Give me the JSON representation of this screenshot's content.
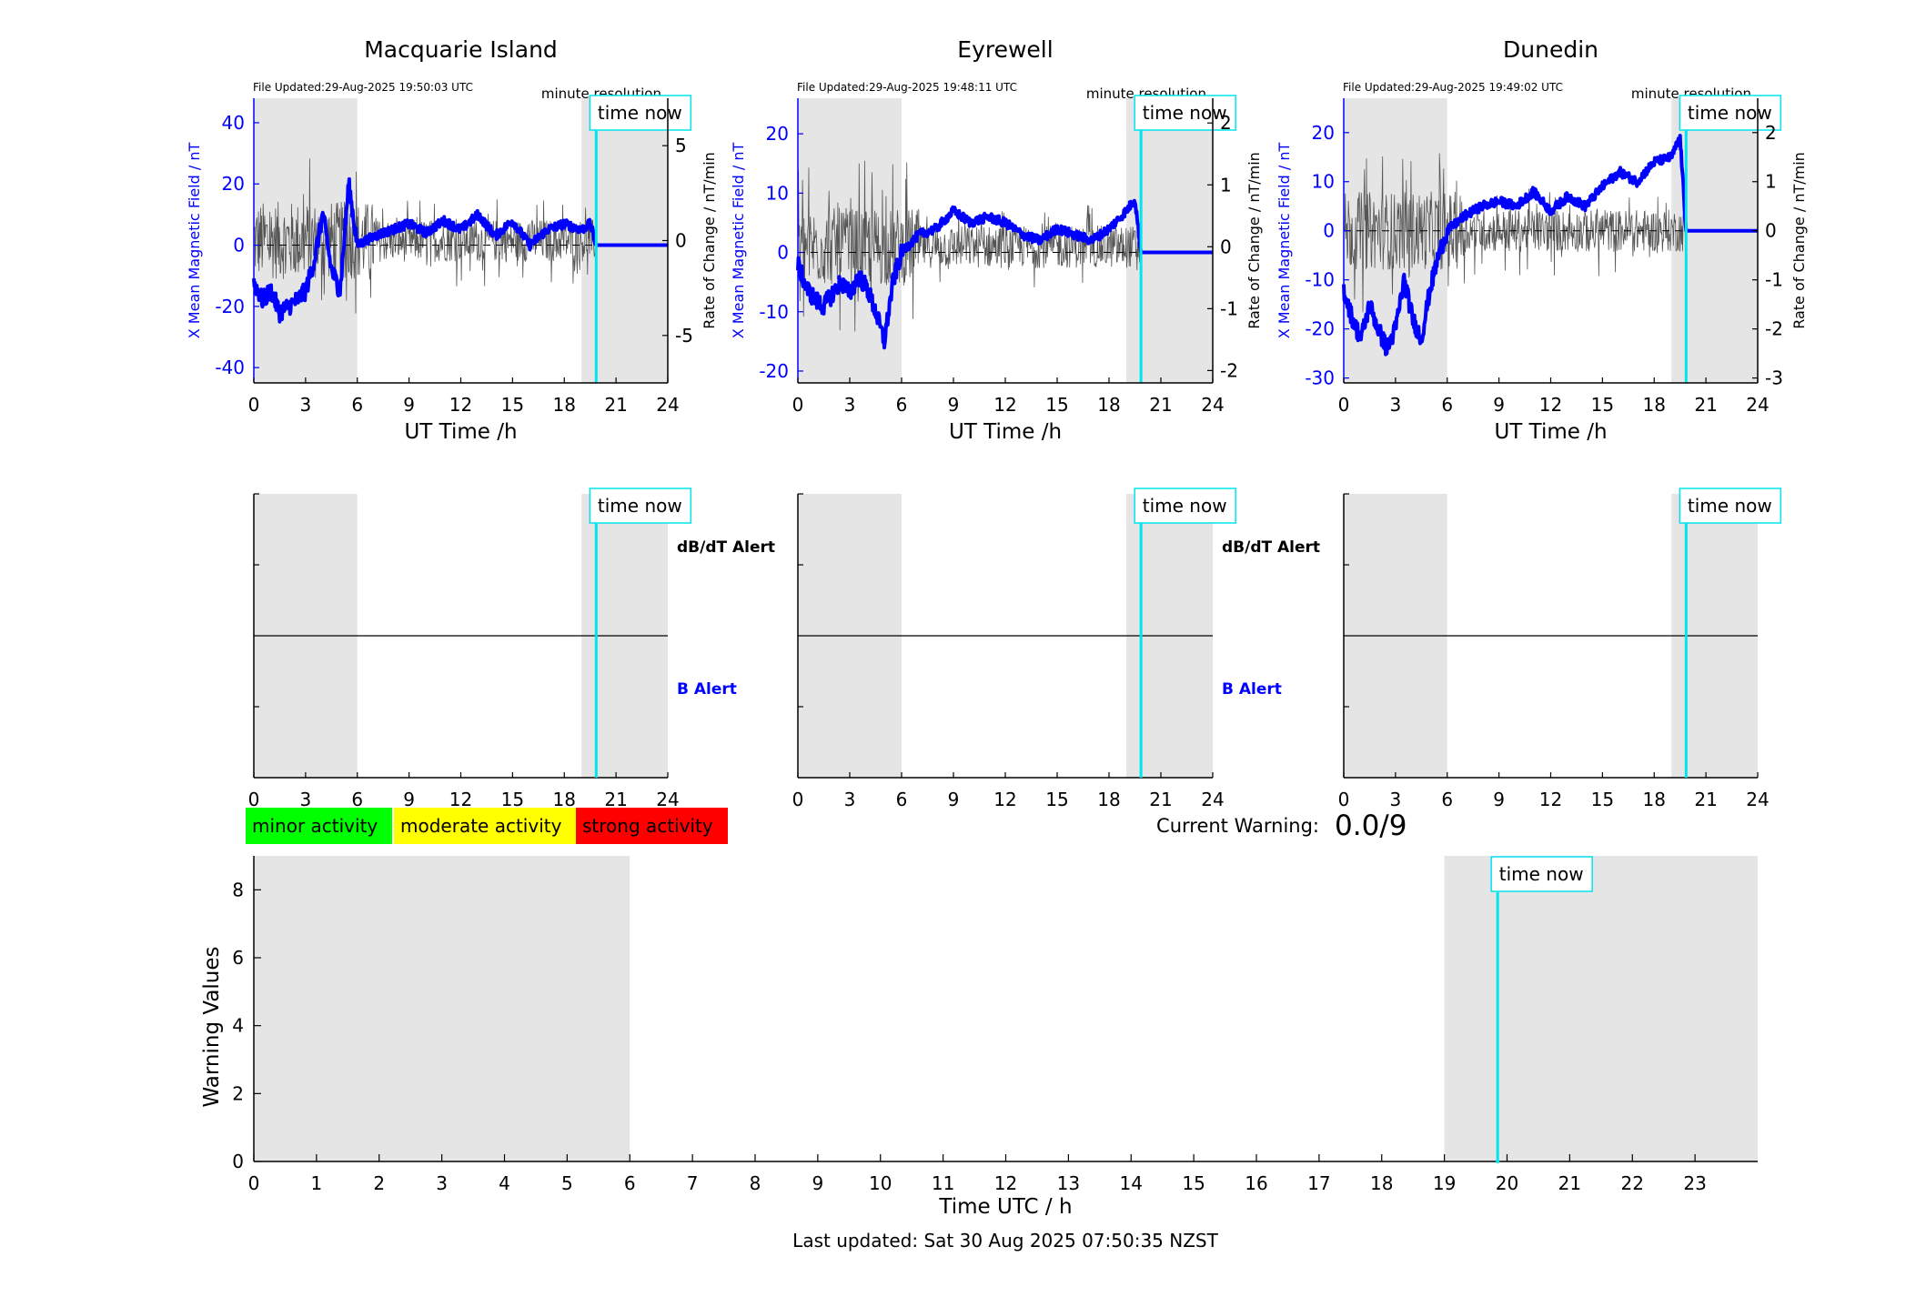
{
  "colors": {
    "field": "#0000ff",
    "rate": "#555555",
    "time_now": "#00e5ee",
    "shade": "#e5e5e5",
    "minor": "#00ff00",
    "moderate": "#ffff00",
    "strong": "#ff0000"
  },
  "stations": [
    {
      "name": "Macquarie Island",
      "file_updated": "File Updated:29-Aug-2025 19:50:03 UTC",
      "resolution": "minute resolution",
      "ylabel_left": "X Mean Magnetic Field / nT",
      "ylabel_right": "Rate of Change / nT/min",
      "left_ticks": [
        -40,
        -20,
        0,
        20,
        40
      ],
      "right_ticks": [
        -5,
        0,
        5
      ],
      "left_ylim": [
        -45,
        48
      ],
      "right_ylim": [
        -7.5,
        7.5
      ],
      "show_alert_labels": true
    },
    {
      "name": "Eyrewell",
      "file_updated": "File Updated:29-Aug-2025 19:48:11 UTC",
      "resolution": "minute resolution",
      "ylabel_left": "X Mean Magnetic Field / nT",
      "ylabel_right": "Rate of Change / nT/min",
      "left_ticks": [
        -20,
        -10,
        0,
        10,
        20
      ],
      "right_ticks": [
        -2,
        -1,
        0,
        1,
        2
      ],
      "left_ylim": [
        -22,
        26
      ],
      "right_ylim": [
        -2.2,
        2.4
      ],
      "show_alert_labels": true
    },
    {
      "name": "Dunedin",
      "file_updated": "File Updated:29-Aug-2025 19:49:02 UTC",
      "resolution": "minute resolution",
      "ylabel_left": "X Mean Magnetic Field / nT",
      "ylabel_right": "Rate of Change / nT/min",
      "left_ticks": [
        -30,
        -20,
        -10,
        0,
        10,
        20
      ],
      "right_ticks": [
        -3,
        -2,
        -1,
        0,
        1,
        2
      ],
      "left_ylim": [
        -31,
        27
      ],
      "right_ylim": [
        -3.1,
        2.7
      ],
      "show_alert_labels": false
    }
  ],
  "top_xlabel": "UT Time /h",
  "x_ticks_3h": [
    0,
    3,
    6,
    9,
    12,
    15,
    18,
    21,
    24
  ],
  "time_now_label": "time now",
  "time_now_hour": 19.85,
  "shaded_hours": [
    [
      0,
      6
    ],
    [
      19,
      24
    ]
  ],
  "alerts": {
    "dbdt": "dB/dT Alert",
    "b": "B Alert"
  },
  "legend": {
    "minor": "minor activity",
    "moderate": "moderate activity",
    "strong": "strong activity"
  },
  "current_warning": {
    "label": "Current Warning:",
    "value": "0.0/9"
  },
  "bottom": {
    "ylabel": "Warning Values",
    "xlabel": "Time UTC / h",
    "y_ticks": [
      0,
      2,
      4,
      6,
      8
    ],
    "x_ticks": [
      0,
      1,
      2,
      3,
      4,
      5,
      6,
      7,
      8,
      9,
      10,
      11,
      12,
      13,
      14,
      15,
      16,
      17,
      18,
      19,
      20,
      21,
      22,
      23
    ],
    "ylim": [
      0,
      9
    ],
    "xlim": [
      0,
      24
    ]
  },
  "footer": "Last updated: Sat 30 Aug 2025 07:50:35 NZST",
  "chart_data": [
    {
      "type": "line",
      "title": "Macquarie Island",
      "xlabel": "UT Time /h",
      "ylabel": "X Mean Magnetic Field / nT",
      "xlim": [
        0,
        24
      ],
      "series": [
        {
          "name": "X Mean Magnetic Field",
          "x": [
            0,
            0.5,
            1,
            1.5,
            2,
            2.5,
            3,
            3.5,
            4,
            4.5,
            5,
            5.5,
            6,
            7,
            8,
            9,
            10,
            11,
            12,
            13,
            14,
            15,
            16,
            17,
            18,
            19,
            19.5,
            19.85,
            24
          ],
          "values": [
            -12,
            -18,
            -15,
            -22,
            -20,
            -18,
            -15,
            -5,
            10,
            -8,
            -15,
            20,
            0,
            3,
            5,
            7,
            4,
            8,
            5,
            10,
            3,
            8,
            0,
            5,
            7,
            5,
            7,
            0,
            0
          ]
        }
      ]
    },
    {
      "type": "line",
      "title": "Eyrewell",
      "xlabel": "UT Time /h",
      "ylabel": "X Mean Magnetic Field / nT",
      "xlim": [
        0,
        24
      ],
      "series": [
        {
          "name": "X Mean Magnetic Field",
          "x": [
            0,
            0.5,
            1,
            1.5,
            2,
            2.5,
            3,
            3.5,
            4,
            4.5,
            5,
            5.5,
            6,
            7,
            8,
            9,
            10,
            11,
            12,
            13,
            14,
            15,
            16,
            17,
            18,
            19,
            19.5,
            19.85,
            24
          ],
          "values": [
            -2,
            -6,
            -8,
            -9,
            -7,
            -5,
            -7,
            -4,
            -6,
            -10,
            -15,
            -5,
            0,
            3,
            4,
            7,
            5,
            6,
            5,
            3,
            2,
            4,
            3,
            2,
            4,
            7,
            9,
            0,
            0
          ]
        }
      ]
    },
    {
      "type": "line",
      "title": "Dunedin",
      "xlabel": "UT Time /h",
      "ylabel": "X Mean Magnetic Field / nT",
      "xlim": [
        0,
        24
      ],
      "series": [
        {
          "name": "X Mean Magnetic Field",
          "x": [
            0,
            0.5,
            1,
            1.5,
            2,
            2.5,
            3,
            3.5,
            4,
            4.5,
            5,
            5.5,
            6,
            7,
            8,
            9,
            10,
            11,
            12,
            13,
            14,
            15,
            16,
            17,
            18,
            19,
            19.5,
            19.85,
            24
          ],
          "values": [
            -12,
            -18,
            -22,
            -15,
            -20,
            -24,
            -20,
            -10,
            -18,
            -22,
            -12,
            -5,
            0,
            3,
            5,
            6,
            5,
            8,
            4,
            7,
            5,
            9,
            12,
            10,
            14,
            15,
            19,
            0,
            0
          ]
        }
      ]
    },
    {
      "type": "line",
      "title": "",
      "xlabel": "Time UTC / h",
      "ylabel": "Warning Values",
      "xlim": [
        0,
        24
      ],
      "ylim": [
        0,
        9
      ],
      "series": [
        {
          "name": "Current Warning",
          "x": [
            19.85
          ],
          "values": [
            0.0
          ]
        }
      ]
    }
  ]
}
